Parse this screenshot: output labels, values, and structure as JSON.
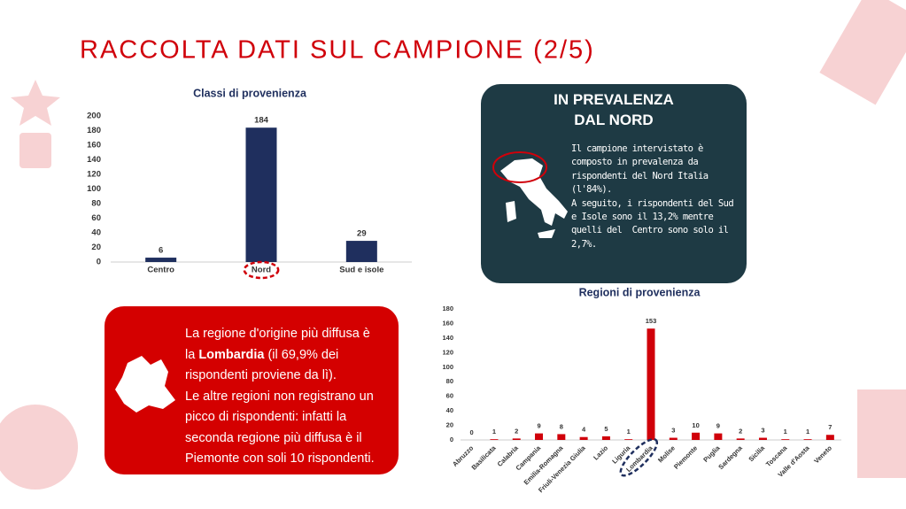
{
  "title": "RACCOLTA DATI SUL CAMPIONE (2/5)",
  "chart_data": [
    {
      "type": "bar",
      "title": "Classi di provenienza",
      "categories": [
        "Centro",
        "Nord",
        "Sud e isole"
      ],
      "values": [
        6,
        184,
        29
      ],
      "color": "#1f2f5e",
      "ylim": [
        0,
        200
      ],
      "yticks": [
        0,
        20,
        40,
        60,
        80,
        100,
        120,
        140,
        160,
        180,
        200
      ],
      "highlight": "Nord",
      "x_label_rotation": 0
    },
    {
      "type": "bar",
      "title": "Regioni di provenienza",
      "categories": [
        "Abruzzo",
        "Basilicata",
        "Calabria",
        "Campania",
        "Emilia-Romagna",
        "Friuli-Venezia Giulia",
        "Lazio",
        "Liguria",
        "Lombardia",
        "Molise",
        "Piemonte",
        "Puglia",
        "Sardegna",
        "Sicilia",
        "Toscana",
        "Valle d'Aosta",
        "Veneto"
      ],
      "values": [
        0,
        1,
        2,
        9,
        8,
        4,
        5,
        1,
        153,
        3,
        10,
        9,
        2,
        3,
        1,
        1,
        7
      ],
      "color": "#d0000a",
      "ylim": [
        0,
        180
      ],
      "yticks": [
        0,
        20,
        40,
        60,
        80,
        100,
        120,
        140,
        160,
        180
      ],
      "highlight": "Lombardia",
      "x_label_rotation": -45
    }
  ],
  "top_box": {
    "heading": [
      "IN PREVALENZA",
      "DAL NORD"
    ],
    "lines": [
      "Il campione intervistato è",
      "composto in prevalenza da",
      "rispondenti del Nord Italia",
      "(l'84%).",
      "A seguito, i rispondenti del Sud",
      "e Isole sono il 13,2% mentre",
      "quelli del  Centro sono solo il",
      "2,7%."
    ]
  },
  "bottom_box": {
    "lines": [
      "La regione d'origine più diffusa è",
      [
        "la ",
        "Lombardia",
        " (il 69,9% dei"
      ],
      "rispondenti proviene da lì).",
      "Le altre regioni non registrano un",
      "picco di rispondenti: infatti la",
      "seconda regione più diffusa è il",
      "Piemonte con soli 10 rispondenti."
    ]
  }
}
